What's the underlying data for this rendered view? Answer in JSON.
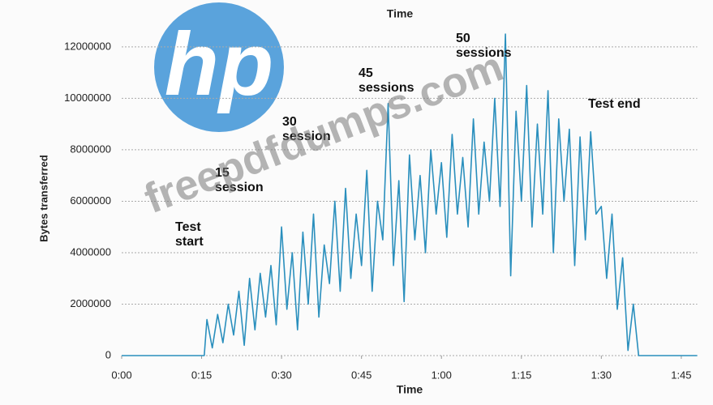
{
  "logo": "hp",
  "watermark": "freepdfdumps.com",
  "chart_data": {
    "type": "line",
    "title": "Time",
    "x_label": "Time",
    "y_label": "Bytes transferred",
    "color": "#2a8fbd",
    "grid": true,
    "xlim": [
      0,
      108
    ],
    "ylim": [
      0,
      12500000
    ],
    "xticks": [
      {
        "value": 0,
        "label": "0:00"
      },
      {
        "value": 15,
        "label": "0:15"
      },
      {
        "value": 30,
        "label": "0:30"
      },
      {
        "value": 45,
        "label": "0:45"
      },
      {
        "value": 60,
        "label": "1:00"
      },
      {
        "value": 75,
        "label": "1:15"
      },
      {
        "value": 90,
        "label": "1:30"
      },
      {
        "value": 105,
        "label": "1:45"
      }
    ],
    "yticks": [
      0,
      2000000,
      4000000,
      6000000,
      8000000,
      10000000,
      12000000
    ],
    "annotations": [
      "Test start",
      "15 session",
      "30 session",
      "45 sessions",
      "50 sessions",
      "Test end"
    ],
    "x": [
      0,
      15.5,
      16,
      17,
      18,
      19,
      20,
      21,
      22,
      23,
      24,
      25,
      26,
      27,
      28,
      29,
      30,
      31,
      32,
      33,
      34,
      35,
      36,
      37,
      38,
      39,
      40,
      41,
      42,
      43,
      44,
      45,
      46,
      47,
      48,
      49,
      50,
      51,
      52,
      53,
      54,
      55,
      56,
      57,
      58,
      59,
      60,
      61,
      62,
      63,
      64,
      65,
      66,
      67,
      68,
      69,
      70,
      71,
      72,
      73,
      74,
      75,
      76,
      77,
      78,
      79,
      80,
      81,
      82,
      83,
      84,
      85,
      86,
      87,
      88,
      89,
      90,
      91,
      92,
      93,
      94,
      95,
      96,
      97,
      108
    ],
    "values": [
      0,
      0,
      1400000,
      300000,
      1600000,
      500000,
      2000000,
      800000,
      2500000,
      400000,
      3000000,
      1000000,
      3200000,
      1500000,
      3500000,
      1200000,
      5000000,
      1800000,
      4000000,
      1000000,
      4800000,
      2000000,
      5500000,
      1500000,
      4300000,
      2800000,
      6000000,
      2500000,
      6500000,
      3000000,
      5500000,
      3500000,
      7200000,
      2500000,
      6000000,
      4500000,
      9800000,
      3500000,
      6800000,
      2100000,
      7800000,
      4500000,
      7000000,
      4000000,
      8000000,
      5500000,
      7500000,
      4600000,
      8600000,
      5500000,
      7700000,
      5000000,
      9200000,
      5500000,
      8300000,
      6000000,
      10000000,
      5800000,
      12500000,
      3100000,
      9500000,
      6000000,
      10500000,
      5000000,
      9000000,
      5500000,
      10300000,
      4000000,
      9200000,
      6000000,
      8800000,
      3500000,
      8500000,
      4500000,
      8700000,
      5500000,
      5800000,
      3000000,
      5500000,
      1800000,
      3800000,
      200000,
      2000000,
      0,
      0
    ]
  }
}
